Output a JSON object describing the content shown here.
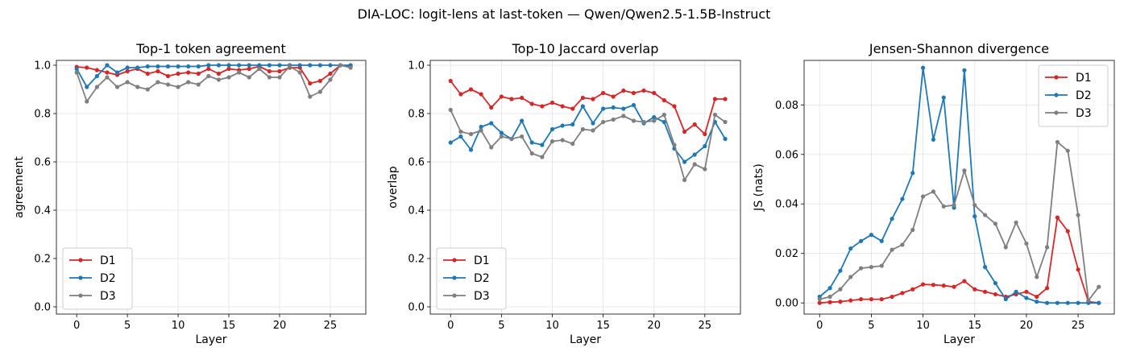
{
  "suptitle": "DIA-LOC: logit-lens at last-token — Qwen/Qwen2.5-1.5B-Instruct",
  "colors": {
    "D1": "#d62728",
    "D2": "#1f77b4",
    "D3": "#7f7f7f"
  },
  "chart_data": [
    {
      "type": "line",
      "title": "Top-1 token agreement",
      "xlabel": "Layer",
      "ylabel": "agreement",
      "xlim": [
        -2,
        28.5
      ],
      "ylim": [
        -0.03,
        1.02
      ],
      "xticks": [
        0,
        5,
        10,
        15,
        20,
        25
      ],
      "yticks": [
        0.0,
        0.2,
        0.4,
        0.6,
        0.8,
        1.0
      ],
      "ytick_labels": [
        "0.0",
        "0.2",
        "0.4",
        "0.6",
        "0.8",
        "1.0"
      ],
      "grid": true,
      "legend": "lower-left",
      "x": [
        0,
        1,
        2,
        3,
        4,
        5,
        6,
        7,
        8,
        9,
        10,
        11,
        12,
        13,
        14,
        15,
        16,
        17,
        18,
        19,
        20,
        21,
        22,
        23,
        24,
        25,
        26,
        27
      ],
      "series": [
        {
          "name": "D1",
          "values": [
            0.993,
            0.99,
            0.98,
            0.97,
            0.96,
            0.975,
            0.985,
            0.965,
            0.975,
            0.955,
            0.965,
            0.97,
            0.965,
            0.985,
            0.965,
            0.985,
            0.98,
            0.985,
            0.995,
            0.975,
            0.975,
            0.99,
            0.99,
            0.925,
            0.935,
            0.965,
            1.0,
            0.995
          ]
        },
        {
          "name": "D2",
          "values": [
            0.985,
            0.91,
            0.955,
            1.0,
            0.97,
            0.99,
            0.99,
            0.995,
            0.995,
            0.995,
            0.995,
            0.995,
            0.995,
            1.0,
            1.0,
            1.0,
            1.0,
            1.0,
            1.0,
            1.0,
            1.0,
            1.0,
            1.0,
            1.0,
            1.0,
            1.0,
            1.0,
            1.0
          ]
        },
        {
          "name": "D3",
          "values": [
            0.97,
            0.85,
            0.91,
            0.95,
            0.91,
            0.93,
            0.91,
            0.9,
            0.93,
            0.92,
            0.91,
            0.93,
            0.92,
            0.955,
            0.94,
            0.95,
            0.97,
            0.95,
            0.985,
            0.95,
            0.95,
            0.995,
            0.97,
            0.87,
            0.89,
            0.94,
            1.0,
            0.99
          ]
        }
      ]
    },
    {
      "type": "line",
      "title": "Top-10 Jaccard overlap",
      "xlabel": "Layer",
      "ylabel": "overlap",
      "xlim": [
        -2,
        28.5
      ],
      "ylim": [
        -0.03,
        1.02
      ],
      "xticks": [
        0,
        5,
        10,
        15,
        20,
        25
      ],
      "yticks": [
        0.0,
        0.2,
        0.4,
        0.6,
        0.8,
        1.0
      ],
      "ytick_labels": [
        "0.0",
        "0.2",
        "0.4",
        "0.6",
        "0.8",
        "1.0"
      ],
      "grid": true,
      "legend": "lower-left",
      "x": [
        0,
        1,
        2,
        3,
        4,
        5,
        6,
        7,
        8,
        9,
        10,
        11,
        12,
        13,
        14,
        15,
        16,
        17,
        18,
        19,
        20,
        21,
        22,
        23,
        24,
        25,
        26,
        27
      ],
      "series": [
        {
          "name": "D1",
          "values": [
            0.935,
            0.88,
            0.9,
            0.88,
            0.825,
            0.87,
            0.86,
            0.865,
            0.84,
            0.83,
            0.845,
            0.83,
            0.82,
            0.865,
            0.86,
            0.885,
            0.87,
            0.895,
            0.885,
            0.895,
            0.885,
            0.855,
            0.83,
            0.725,
            0.755,
            0.715,
            0.86,
            0.86
          ]
        },
        {
          "name": "D2",
          "values": [
            0.68,
            0.705,
            0.65,
            0.745,
            0.76,
            0.72,
            0.695,
            0.77,
            0.68,
            0.67,
            0.735,
            0.75,
            0.755,
            0.83,
            0.76,
            0.82,
            0.825,
            0.82,
            0.835,
            0.76,
            0.785,
            0.765,
            0.655,
            0.6,
            0.63,
            0.665,
            0.765,
            0.695
          ]
        },
        {
          "name": "D3",
          "values": [
            0.815,
            0.725,
            0.715,
            0.73,
            0.66,
            0.705,
            0.695,
            0.705,
            0.635,
            0.62,
            0.685,
            0.69,
            0.675,
            0.735,
            0.73,
            0.765,
            0.775,
            0.79,
            0.77,
            0.765,
            0.77,
            0.795,
            0.67,
            0.525,
            0.59,
            0.57,
            0.795,
            0.765
          ]
        }
      ]
    },
    {
      "type": "line",
      "title": "Jensen-Shannon divergence",
      "xlabel": "Layer",
      "ylabel": "JS (nats)",
      "xlim": [
        -1.5,
        28.5
      ],
      "ylim": [
        -0.0045,
        0.098
      ],
      "xticks": [
        0,
        5,
        10,
        15,
        20,
        25
      ],
      "yticks": [
        0.0,
        0.02,
        0.04,
        0.06,
        0.08
      ],
      "ytick_labels": [
        "0.00",
        "0.02",
        "0.04",
        "0.06",
        "0.08"
      ],
      "grid": true,
      "legend": "upper-right",
      "x": [
        0,
        1,
        2,
        3,
        4,
        5,
        6,
        7,
        8,
        9,
        10,
        11,
        12,
        13,
        14,
        15,
        16,
        17,
        18,
        19,
        20,
        21,
        22,
        23,
        24,
        25,
        26,
        27
      ],
      "series": [
        {
          "name": "D1",
          "values": [
            0.0,
            0.0003,
            0.0005,
            0.001,
            0.0015,
            0.0015,
            0.0015,
            0.0025,
            0.004,
            0.0055,
            0.0075,
            0.0073,
            0.007,
            0.0065,
            0.0088,
            0.0055,
            0.0045,
            0.0035,
            0.0025,
            0.0035,
            0.0045,
            0.0025,
            0.006,
            0.0345,
            0.029,
            0.0135,
            0.0005,
            0.0
          ]
        },
        {
          "name": "D2",
          "values": [
            0.0025,
            0.006,
            0.013,
            0.022,
            0.025,
            0.0275,
            0.025,
            0.034,
            0.042,
            0.0525,
            0.095,
            0.066,
            0.083,
            0.0385,
            0.094,
            0.035,
            0.0145,
            0.008,
            0.0015,
            0.0045,
            0.002,
            0.0005,
            0.0,
            0.0,
            0.0,
            0.0,
            0.0,
            0.0
          ]
        },
        {
          "name": "D3",
          "values": [
            0.0015,
            0.0025,
            0.0055,
            0.0105,
            0.014,
            0.0145,
            0.015,
            0.0215,
            0.0235,
            0.0295,
            0.043,
            0.045,
            0.039,
            0.0395,
            0.0535,
            0.0395,
            0.0355,
            0.032,
            0.0225,
            0.0325,
            0.024,
            0.0105,
            0.0225,
            0.065,
            0.0615,
            0.0355,
            0.001,
            0.0065
          ]
        }
      ]
    }
  ]
}
